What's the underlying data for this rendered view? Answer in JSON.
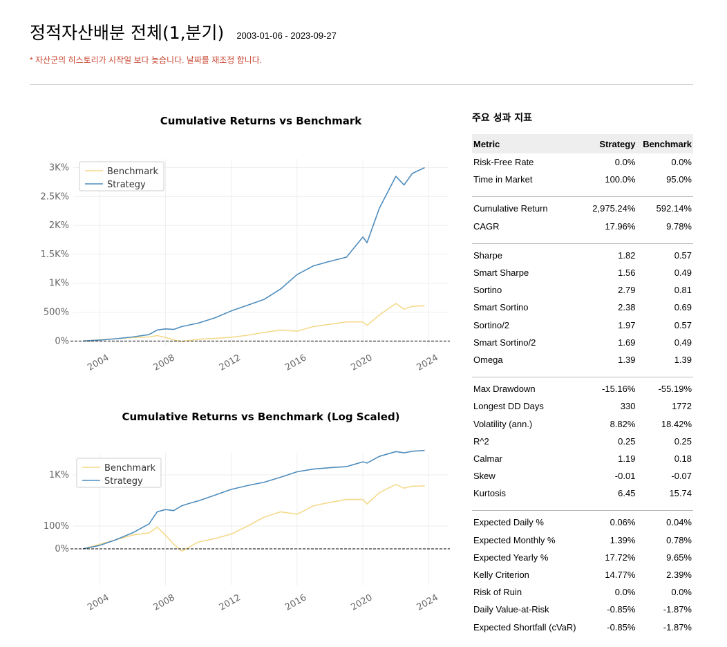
{
  "header": {
    "title": "정적자산배분 전체(1,분기)",
    "date_range": "2003-01-06 - 2023-09-27",
    "warning": "* 자산군의 히스토리가 시작일 보다 늦습니다. 날짜를 재조정 합니다."
  },
  "colors": {
    "strategy": "#4d8cbd",
    "benchmark": "#f5d98c",
    "warning": "#c8432e"
  },
  "chart_data": [
    {
      "type": "line",
      "title": "Cumulative Returns vs Benchmark",
      "x_ticks": [
        "2004",
        "2008",
        "2012",
        "2016",
        "2020",
        "2024"
      ],
      "y_tick_labels": [
        "0%",
        "500%",
        "1K%",
        "1.5K%",
        "2K%",
        "2.5K%",
        "3K%"
      ],
      "ylim": [
        -80,
        3150
      ],
      "xlim": [
        2002.4,
        2025.2
      ],
      "grid": true,
      "legend_position": "top-left",
      "baseline": 0,
      "x": [
        2003.0,
        2004.0,
        2005.0,
        2006.0,
        2007.0,
        2007.5,
        2008.0,
        2008.5,
        2009.0,
        2009.5,
        2010.0,
        2011.0,
        2012.0,
        2013.0,
        2014.0,
        2015.0,
        2016.0,
        2017.0,
        2018.0,
        2019.0,
        2020.0,
        2020.25,
        2021.0,
        2022.0,
        2022.5,
        2023.0,
        2023.75
      ],
      "series": [
        {
          "name": "Strategy",
          "values": [
            0,
            15,
            40,
            70,
            110,
            190,
            210,
            200,
            250,
            280,
            310,
            400,
            520,
            620,
            720,
            900,
            1150,
            1300,
            1380,
            1450,
            1800,
            1700,
            2300,
            2850,
            2700,
            2900,
            3000
          ]
        },
        {
          "name": "Benchmark",
          "values": [
            0,
            20,
            40,
            60,
            70,
            95,
            60,
            20,
            -10,
            10,
            30,
            45,
            65,
            100,
            150,
            190,
            170,
            250,
            290,
            330,
            330,
            270,
            450,
            650,
            550,
            600,
            610
          ]
        }
      ]
    },
    {
      "type": "line",
      "title": "Cumulative Returns vs Benchmark (Log Scaled)",
      "x_ticks": [
        "2004",
        "2008",
        "2012",
        "2016",
        "2020",
        "2024"
      ],
      "y_tick_labels": [
        "0%",
        "100%",
        "1K%"
      ],
      "yscale": "log",
      "xlim": [
        2002.4,
        2025.2
      ],
      "grid": true,
      "legend_position": "top-left",
      "baseline": 0,
      "x": [
        2003.0,
        2004.0,
        2005.0,
        2006.0,
        2007.0,
        2007.5,
        2008.0,
        2008.5,
        2009.0,
        2009.5,
        2010.0,
        2011.0,
        2012.0,
        2013.0,
        2014.0,
        2015.0,
        2016.0,
        2017.0,
        2018.0,
        2019.0,
        2020.0,
        2020.25,
        2021.0,
        2022.0,
        2022.5,
        2023.0,
        2023.75
      ],
      "series": [
        {
          "name": "Strategy",
          "values": [
            0,
            15,
            40,
            70,
            110,
            190,
            210,
            200,
            250,
            280,
            310,
            400,
            520,
            620,
            720,
            900,
            1150,
            1300,
            1380,
            1450,
            1800,
            1700,
            2300,
            2850,
            2700,
            2900,
            3000
          ]
        },
        {
          "name": "Benchmark",
          "values": [
            0,
            20,
            40,
            60,
            70,
            95,
            60,
            20,
            -10,
            10,
            30,
            45,
            65,
            100,
            150,
            190,
            170,
            250,
            290,
            330,
            330,
            270,
            450,
            650,
            550,
            600,
            610
          ]
        }
      ]
    }
  ],
  "metrics": {
    "title": "주요 성과 지표",
    "columns": [
      "Metric",
      "Strategy",
      "Benchmark"
    ],
    "groups": [
      [
        [
          "Risk-Free Rate",
          "0.0%",
          "0.0%"
        ],
        [
          "Time in Market",
          "100.0%",
          "95.0%"
        ]
      ],
      [
        [
          "Cumulative Return",
          "2,975.24%",
          "592.14%"
        ],
        [
          "CAGR",
          "17.96%",
          "9.78%"
        ]
      ],
      [
        [
          "Sharpe",
          "1.82",
          "0.57"
        ],
        [
          "Smart Sharpe",
          "1.56",
          "0.49"
        ],
        [
          "Sortino",
          "2.79",
          "0.81"
        ],
        [
          "Smart Sortino",
          "2.38",
          "0.69"
        ],
        [
          "Sortino/2",
          "1.97",
          "0.57"
        ],
        [
          "Smart Sortino/2",
          "1.69",
          "0.49"
        ],
        [
          "Omega",
          "1.39",
          "1.39"
        ]
      ],
      [
        [
          "Max Drawdown",
          "-15.16%",
          "-55.19%"
        ],
        [
          "Longest DD Days",
          "330",
          "1772"
        ],
        [
          "Volatility (ann.)",
          "8.82%",
          "18.42%"
        ],
        [
          "R^2",
          "0.25",
          "0.25"
        ],
        [
          "Calmar",
          "1.19",
          "0.18"
        ],
        [
          "Skew",
          "-0.01",
          "-0.07"
        ],
        [
          "Kurtosis",
          "6.45",
          "15.74"
        ]
      ],
      [
        [
          "Expected Daily %",
          "0.06%",
          "0.04%"
        ],
        [
          "Expected Monthly %",
          "1.39%",
          "0.78%"
        ],
        [
          "Expected Yearly %",
          "17.72%",
          "9.65%"
        ],
        [
          "Kelly Criterion",
          "14.77%",
          "2.39%"
        ],
        [
          "Risk of Ruin",
          "0.0%",
          "0.0%"
        ],
        [
          "Daily Value-at-Risk",
          "-0.85%",
          "-1.87%"
        ],
        [
          "Expected Shortfall (cVaR)",
          "-0.85%",
          "-1.87%"
        ]
      ]
    ]
  }
}
